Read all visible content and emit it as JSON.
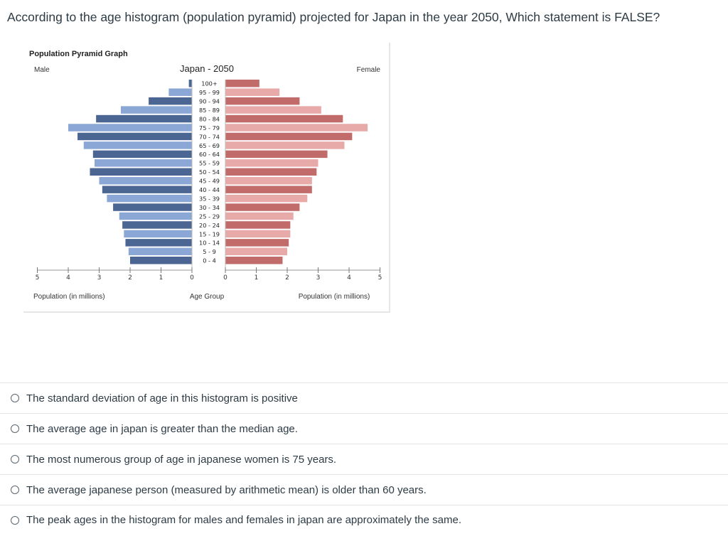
{
  "question": "According to the age histogram (population pyramid) projected for Japan in the year 2050, Which statement is FALSE?",
  "options": [
    {
      "label": "The standard deviation of age in this histogram is positive"
    },
    {
      "label": "The average age in japan is greater than the median age."
    },
    {
      "label": "The most numerous group of age in japanese women is 75 years."
    },
    {
      "label": "The average japanese person (measured by arithmetic mean) is older than 60 years."
    },
    {
      "label": "The peak ages in the histogram for males and females in japan are approximately the same."
    }
  ],
  "colors": {
    "male_dark": "#4c6694",
    "male_light": "#8aa7d6",
    "female_dark": "#c26b6b",
    "female_light": "#e8a9a9"
  },
  "chart_data": {
    "type": "bar",
    "header": "Population Pyramid Graph",
    "title": "Japan - 2050",
    "left_label": "Male",
    "right_label": "Female",
    "xlabel_left": "Population (in millions)",
    "xlabel_center": "Age Group",
    "xlabel_right": "Population (in millions)",
    "xlim": [
      0,
      5
    ],
    "x_ticks": [
      "5",
      "4",
      "3",
      "2",
      "1",
      "0",
      "0",
      "1",
      "2",
      "3",
      "4",
      "5"
    ],
    "categories": [
      "100+",
      "95 - 99",
      "90 - 94",
      "85 - 89",
      "80 - 84",
      "75 - 79",
      "70 - 74",
      "65 - 69",
      "60 - 64",
      "55 - 59",
      "50 - 54",
      "45 - 49",
      "40 - 44",
      "35 - 39",
      "30 - 34",
      "25 - 29",
      "20 - 24",
      "15 - 19",
      "10 - 14",
      "5 - 9",
      "0 - 4"
    ],
    "series": [
      {
        "name": "Male",
        "values": [
          0.1,
          0.75,
          1.4,
          2.3,
          3.1,
          4.0,
          3.7,
          3.5,
          3.2,
          3.15,
          3.3,
          3.0,
          2.9,
          2.75,
          2.55,
          2.35,
          2.25,
          2.2,
          2.15,
          2.05,
          2.0
        ]
      },
      {
        "name": "Female",
        "values": [
          1.1,
          1.75,
          2.4,
          3.1,
          3.8,
          4.6,
          4.1,
          3.85,
          3.3,
          3.0,
          2.95,
          2.8,
          2.8,
          2.65,
          2.4,
          2.2,
          2.1,
          2.1,
          2.05,
          2.0,
          1.85
        ]
      }
    ]
  }
}
